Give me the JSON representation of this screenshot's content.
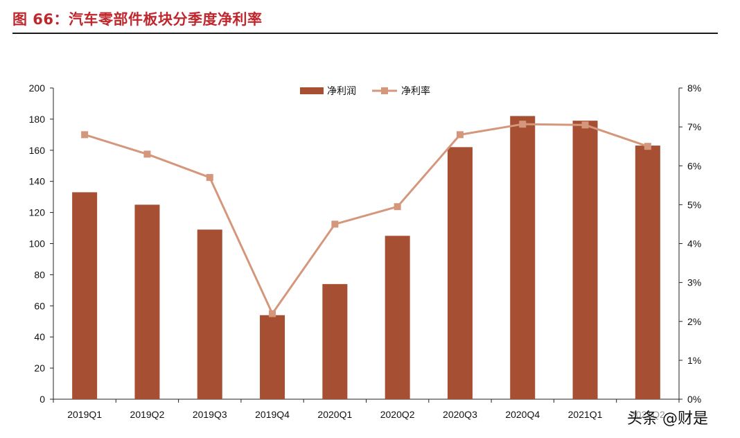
{
  "figure": {
    "title": "图 66：汽车零部件板块分季度净利率",
    "watermark": "头条 @财是"
  },
  "colors": {
    "bar": "#A64F32",
    "line": "#D4977B",
    "title": "#C0272D"
  },
  "chart_data": {
    "type": "bar",
    "categories": [
      "2019Q1",
      "2019Q2",
      "2019Q3",
      "2019Q4",
      "2020Q1",
      "2020Q2",
      "2020Q3",
      "2020Q4",
      "2021Q1",
      "2021Q2"
    ],
    "series": [
      {
        "name": "净利润",
        "type": "bar",
        "axis": "left",
        "values": [
          133,
          125,
          109,
          54,
          74,
          105,
          162,
          182,
          179,
          163
        ]
      },
      {
        "name": "净利率",
        "type": "line",
        "axis": "right",
        "values": [
          0.068,
          0.063,
          0.057,
          0.022,
          0.045,
          0.0495,
          0.068,
          0.0707,
          0.0705,
          0.065
        ]
      }
    ],
    "ylim_left": [
      0,
      200
    ],
    "yticks_left": [
      "0",
      "20",
      "40",
      "60",
      "80",
      "100",
      "120",
      "140",
      "160",
      "180",
      "200"
    ],
    "ylim_right": [
      0,
      0.08
    ],
    "yticks_right": [
      "0%",
      "1%",
      "2%",
      "3%",
      "4%",
      "5%",
      "6%",
      "7%",
      "8%"
    ],
    "legend": {
      "position": "top-center",
      "labels": [
        "净利润",
        "净利率"
      ]
    },
    "grid": false
  }
}
